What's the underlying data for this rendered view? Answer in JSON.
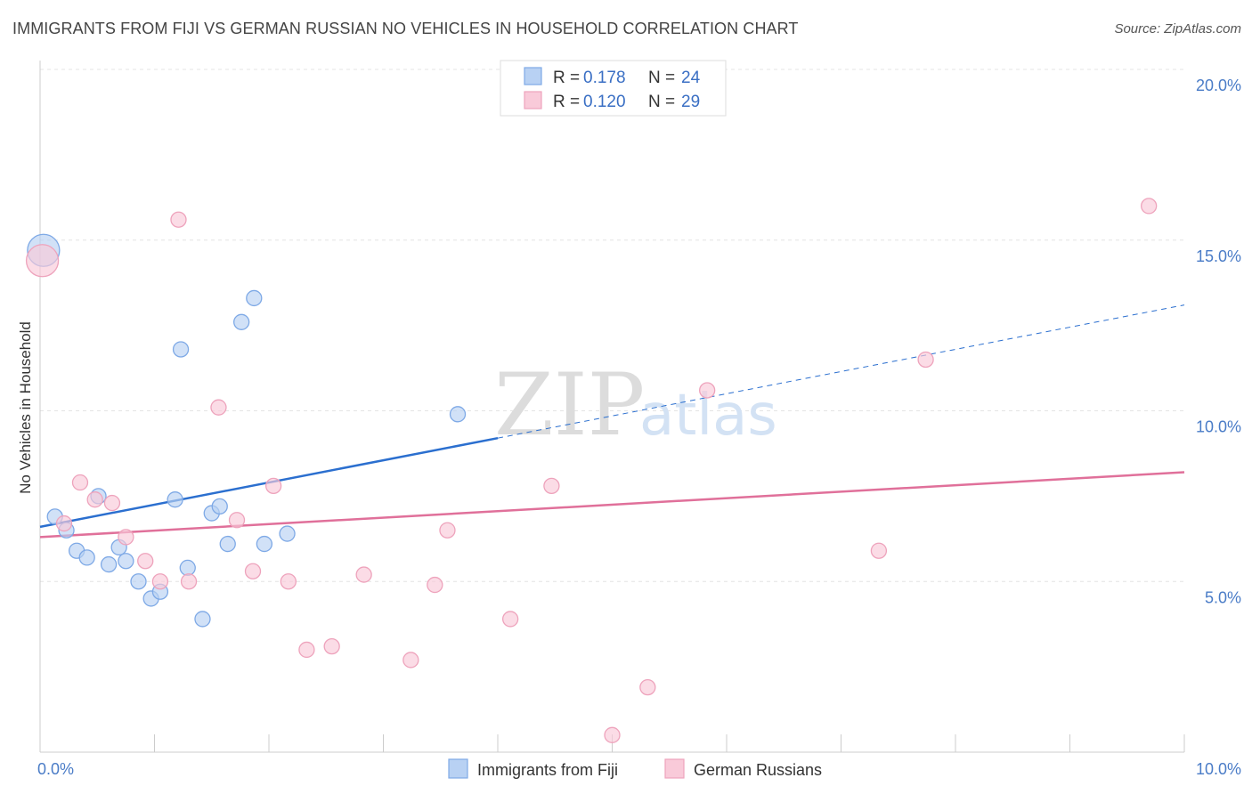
{
  "header": {
    "title": "IMMIGRANTS FROM FIJI VS GERMAN RUSSIAN NO VEHICLES IN HOUSEHOLD CORRELATION CHART",
    "source": "Source: ZipAtlas.com"
  },
  "watermark": {
    "zip": "ZIP",
    "atlas": "atlas"
  },
  "chart_data": {
    "type": "scatter",
    "ylabel": "No Vehicles in Household",
    "xlim": [
      0,
      10
    ],
    "ylim": [
      0,
      20
    ],
    "x_ticks": [
      0,
      1,
      2,
      3,
      4,
      5,
      6,
      7,
      8,
      9,
      10
    ],
    "x_tick_labels": [
      {
        "x": 0,
        "label": "0.0%"
      },
      {
        "x": 10,
        "label": "10.0%"
      }
    ],
    "y_tick_labels": [
      {
        "y": 5,
        "label": "5.0%"
      },
      {
        "y": 10,
        "label": "10.0%"
      },
      {
        "y": 15,
        "label": "15.0%"
      },
      {
        "y": 20,
        "label": "20.0%"
      }
    ],
    "grid": true,
    "legend_position": "top-center",
    "series": [
      {
        "name": "Immigrants from Fiji",
        "color": "#7ea9e6",
        "fill": "#b8d1f3",
        "line_color": "#2b6fcf",
        "r_label": "R =",
        "r_value": "0.178",
        "n_label": "N =",
        "n_value": "24",
        "trend": {
          "x0": 0,
          "y0": 6.6,
          "x1": 4.0,
          "y1": 9.2,
          "dash_to_x": 10,
          "dash_to_y": 13.1
        },
        "points": [
          {
            "x": 0.03,
            "y": 14.7,
            "size": "large"
          },
          {
            "x": 0.13,
            "y": 6.9
          },
          {
            "x": 0.23,
            "y": 6.5
          },
          {
            "x": 0.32,
            "y": 5.9
          },
          {
            "x": 0.41,
            "y": 5.7
          },
          {
            "x": 0.51,
            "y": 7.5
          },
          {
            "x": 0.6,
            "y": 5.5
          },
          {
            "x": 0.69,
            "y": 6.0
          },
          {
            "x": 0.75,
            "y": 5.6
          },
          {
            "x": 0.86,
            "y": 5.0
          },
          {
            "x": 0.97,
            "y": 4.5
          },
          {
            "x": 1.05,
            "y": 4.7
          },
          {
            "x": 1.18,
            "y": 7.4
          },
          {
            "x": 1.23,
            "y": 11.8
          },
          {
            "x": 1.29,
            "y": 5.4
          },
          {
            "x": 1.42,
            "y": 3.9
          },
          {
            "x": 1.5,
            "y": 7.0
          },
          {
            "x": 1.57,
            "y": 7.2
          },
          {
            "x": 1.64,
            "y": 6.1
          },
          {
            "x": 1.76,
            "y": 12.6
          },
          {
            "x": 1.87,
            "y": 13.3
          },
          {
            "x": 1.96,
            "y": 6.1
          },
          {
            "x": 2.16,
            "y": 6.4
          },
          {
            "x": 3.65,
            "y": 9.9
          }
        ]
      },
      {
        "name": "German Russians",
        "color": "#eea3bc",
        "fill": "#f9cad9",
        "line_color": "#e0709a",
        "r_label": "R =",
        "r_value": "0.120",
        "n_label": "N =",
        "n_value": "29",
        "trend": {
          "x0": 0,
          "y0": 6.3,
          "x1": 10,
          "y1": 8.2
        },
        "points": [
          {
            "x": 0.02,
            "y": 14.4,
            "size": "large"
          },
          {
            "x": 0.21,
            "y": 6.7
          },
          {
            "x": 0.35,
            "y": 7.9
          },
          {
            "x": 0.48,
            "y": 7.4
          },
          {
            "x": 0.63,
            "y": 7.3
          },
          {
            "x": 0.75,
            "y": 6.3
          },
          {
            "x": 0.92,
            "y": 5.6
          },
          {
            "x": 1.05,
            "y": 5.0
          },
          {
            "x": 1.21,
            "y": 15.6
          },
          {
            "x": 1.3,
            "y": 5.0
          },
          {
            "x": 1.56,
            "y": 10.1
          },
          {
            "x": 1.72,
            "y": 6.8
          },
          {
            "x": 1.86,
            "y": 5.3
          },
          {
            "x": 2.04,
            "y": 7.8
          },
          {
            "x": 2.17,
            "y": 5.0
          },
          {
            "x": 2.33,
            "y": 3.0
          },
          {
            "x": 2.55,
            "y": 3.1
          },
          {
            "x": 2.83,
            "y": 5.2
          },
          {
            "x": 3.24,
            "y": 2.7
          },
          {
            "x": 3.45,
            "y": 4.9
          },
          {
            "x": 3.56,
            "y": 6.5
          },
          {
            "x": 4.11,
            "y": 3.9
          },
          {
            "x": 4.47,
            "y": 7.8
          },
          {
            "x": 5.0,
            "y": 0.5
          },
          {
            "x": 5.31,
            "y": 1.9
          },
          {
            "x": 5.83,
            "y": 10.6
          },
          {
            "x": 7.33,
            "y": 5.9
          },
          {
            "x": 7.74,
            "y": 11.5
          },
          {
            "x": 9.69,
            "y": 16.0
          }
        ]
      }
    ]
  }
}
